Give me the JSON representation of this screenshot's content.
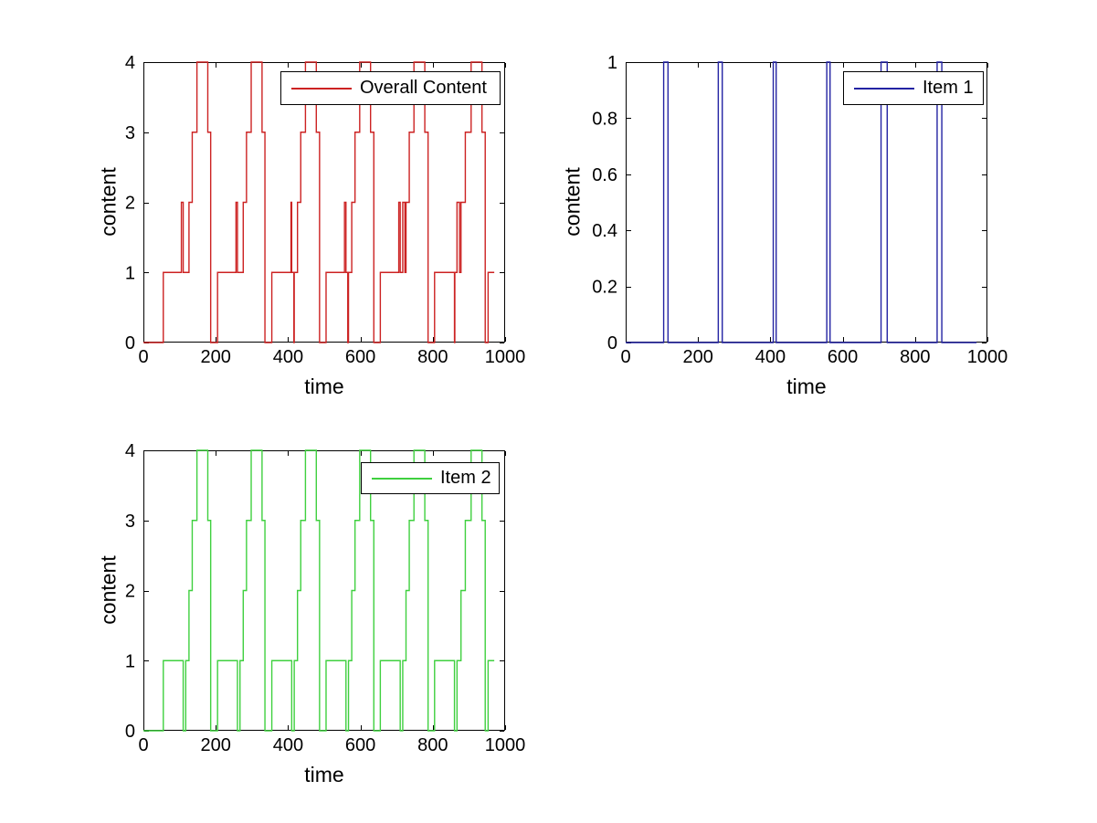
{
  "figure": {
    "background": "#ffffff",
    "axis_color": "#000000",
    "tick_fontsize": 20,
    "label_fontsize": 23
  },
  "chart_data": [
    {
      "id": "overall-content",
      "type": "line",
      "line_style": "step",
      "xlabel": "time",
      "ylabel": "content",
      "legend": {
        "label": "Overall Content",
        "position": "top-right-inside"
      },
      "color": "#cc2222",
      "xlim": [
        0,
        1000
      ],
      "ylim": [
        0,
        4
      ],
      "xticks": [
        "0",
        "200",
        "400",
        "600",
        "800",
        "1000"
      ],
      "yticks": [
        "0",
        "1",
        "2",
        "3",
        "4"
      ],
      "grid": false,
      "start_value": 0,
      "series_end": 970,
      "step_events": [
        [
          55,
          1
        ],
        [
          105,
          2
        ],
        [
          110,
          1
        ],
        [
          126,
          2
        ],
        [
          135,
          3
        ],
        [
          148,
          4
        ],
        [
          178,
          3
        ],
        [
          186,
          0
        ],
        [
          205,
          1
        ],
        [
          256,
          2
        ],
        [
          260,
          1
        ],
        [
          276,
          2
        ],
        [
          285,
          3
        ],
        [
          298,
          4
        ],
        [
          328,
          3
        ],
        [
          336,
          0
        ],
        [
          355,
          1
        ],
        [
          408,
          2
        ],
        [
          410,
          1
        ],
        [
          416,
          0
        ],
        [
          417,
          1
        ],
        [
          426,
          2
        ],
        [
          435,
          3
        ],
        [
          448,
          4
        ],
        [
          478,
          3
        ],
        [
          487,
          0
        ],
        [
          505,
          1
        ],
        [
          556,
          2
        ],
        [
          560,
          1
        ],
        [
          565,
          0
        ],
        [
          567,
          1
        ],
        [
          576,
          2
        ],
        [
          585,
          3
        ],
        [
          598,
          4
        ],
        [
          628,
          3
        ],
        [
          637,
          0
        ],
        [
          655,
          1
        ],
        [
          706,
          2
        ],
        [
          710,
          1
        ],
        [
          717,
          2
        ],
        [
          723,
          1
        ],
        [
          726,
          2
        ],
        [
          735,
          3
        ],
        [
          748,
          4
        ],
        [
          778,
          3
        ],
        [
          787,
          0
        ],
        [
          805,
          1
        ],
        [
          860,
          0
        ],
        [
          861,
          1
        ],
        [
          867,
          2
        ],
        [
          874,
          1
        ],
        [
          878,
          2
        ],
        [
          890,
          3
        ],
        [
          906,
          4
        ],
        [
          936,
          3
        ],
        [
          945,
          0
        ],
        [
          953,
          1
        ]
      ]
    },
    {
      "id": "item-1",
      "type": "line",
      "line_style": "step",
      "xlabel": "time",
      "ylabel": "content",
      "legend": {
        "label": "Item 1",
        "position": "top-right-inside"
      },
      "color": "#2323a3",
      "xlim": [
        0,
        1000
      ],
      "ylim": [
        0,
        1
      ],
      "xticks": [
        "0",
        "200",
        "400",
        "600",
        "800",
        "1000"
      ],
      "yticks": [
        "0",
        "0.2",
        "0.4",
        "0.6",
        "0.8",
        "1"
      ],
      "grid": false,
      "start_value": 0,
      "series_end": 970,
      "step_events": [
        [
          105,
          1
        ],
        [
          117,
          0
        ],
        [
          256,
          1
        ],
        [
          267,
          0
        ],
        [
          408,
          1
        ],
        [
          416,
          0
        ],
        [
          556,
          1
        ],
        [
          565,
          0
        ],
        [
          706,
          1
        ],
        [
          723,
          0
        ],
        [
          861,
          1
        ],
        [
          874,
          0
        ]
      ]
    },
    {
      "id": "item-2",
      "type": "line",
      "line_style": "step",
      "xlabel": "time",
      "ylabel": "content",
      "legend": {
        "label": "Item 2",
        "position": "top-right-inside"
      },
      "color": "#3fd03f",
      "xlim": [
        0,
        1000
      ],
      "ylim": [
        0,
        4
      ],
      "xticks": [
        "0",
        "200",
        "400",
        "600",
        "800",
        "1000"
      ],
      "yticks": [
        "0",
        "1",
        "2",
        "3",
        "4"
      ],
      "grid": false,
      "start_value": 0,
      "series_end": 970,
      "step_events": [
        [
          55,
          1
        ],
        [
          110,
          0
        ],
        [
          117,
          1
        ],
        [
          126,
          2
        ],
        [
          135,
          3
        ],
        [
          148,
          4
        ],
        [
          178,
          3
        ],
        [
          186,
          0
        ],
        [
          205,
          1
        ],
        [
          260,
          0
        ],
        [
          267,
          1
        ],
        [
          276,
          2
        ],
        [
          285,
          3
        ],
        [
          298,
          4
        ],
        [
          328,
          3
        ],
        [
          336,
          0
        ],
        [
          355,
          1
        ],
        [
          410,
          0
        ],
        [
          417,
          1
        ],
        [
          426,
          2
        ],
        [
          435,
          3
        ],
        [
          448,
          4
        ],
        [
          478,
          3
        ],
        [
          487,
          0
        ],
        [
          505,
          1
        ],
        [
          560,
          0
        ],
        [
          567,
          1
        ],
        [
          576,
          2
        ],
        [
          585,
          3
        ],
        [
          598,
          4
        ],
        [
          628,
          3
        ],
        [
          637,
          0
        ],
        [
          655,
          1
        ],
        [
          710,
          0
        ],
        [
          717,
          1
        ],
        [
          726,
          2
        ],
        [
          735,
          3
        ],
        [
          748,
          4
        ],
        [
          778,
          3
        ],
        [
          787,
          0
        ],
        [
          805,
          1
        ],
        [
          860,
          0
        ],
        [
          867,
          1
        ],
        [
          878,
          2
        ],
        [
          890,
          3
        ],
        [
          906,
          4
        ],
        [
          936,
          3
        ],
        [
          945,
          0
        ],
        [
          953,
          1
        ]
      ]
    }
  ]
}
